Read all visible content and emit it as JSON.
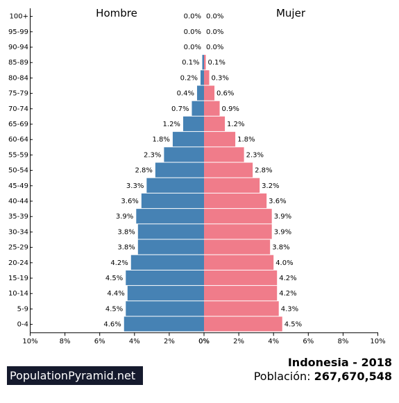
{
  "brand": {
    "logo_text": "PopulationPyramid.net"
  },
  "footer": {
    "country": "Indonesia",
    "separator": " - ",
    "year": "2018",
    "population_label": "Población: ",
    "population_value": "267,670,548"
  },
  "chart_data": {
    "type": "bar",
    "orientation": "horizontal-pyramid",
    "left_title": "Hombre",
    "right_title": "Mujer",
    "x_unit": "%",
    "xlim": [
      -10,
      10
    ],
    "x_ticks": [
      "10%",
      "8%",
      "6%",
      "4%",
      "2%",
      "0%",
      "0%",
      "2%",
      "4%",
      "6%",
      "8%",
      "10%"
    ],
    "colors": {
      "male": "#4682b4",
      "female": "#f07c8a",
      "axis": "#000000"
    },
    "categories": [
      "100+",
      "95-99",
      "90-94",
      "85-89",
      "80-84",
      "75-79",
      "70-74",
      "65-69",
      "60-64",
      "55-59",
      "50-54",
      "45-49",
      "40-44",
      "35-39",
      "30-34",
      "25-29",
      "20-24",
      "15-19",
      "10-14",
      "5-9",
      "0-4"
    ],
    "series": [
      {
        "name": "Hombre",
        "values": [
          0.0,
          0.0,
          0.0,
          0.1,
          0.2,
          0.4,
          0.7,
          1.2,
          1.8,
          2.3,
          2.8,
          3.3,
          3.6,
          3.9,
          3.8,
          3.8,
          4.2,
          4.5,
          4.4,
          4.5,
          4.6
        ],
        "labels": [
          "0.0%",
          "0.0%",
          "0.0%",
          "0.1%",
          "0.2%",
          "0.4%",
          "0.7%",
          "1.2%",
          "1.8%",
          "2.3%",
          "2.8%",
          "3.3%",
          "3.6%",
          "3.9%",
          "3.8%",
          "3.8%",
          "4.2%",
          "4.5%",
          "4.4%",
          "4.5%",
          "4.6%"
        ]
      },
      {
        "name": "Mujer",
        "values": [
          0.0,
          0.0,
          0.0,
          0.1,
          0.3,
          0.6,
          0.9,
          1.2,
          1.8,
          2.3,
          2.8,
          3.2,
          3.6,
          3.9,
          3.9,
          3.8,
          4.0,
          4.2,
          4.2,
          4.3,
          4.5
        ],
        "labels": [
          "0.0%",
          "0.0%",
          "0.0%",
          "0.1%",
          "0.3%",
          "0.6%",
          "0.9%",
          "1.2%",
          "1.8%",
          "2.3%",
          "2.8%",
          "3.2%",
          "3.6%",
          "3.9%",
          "3.9%",
          "3.8%",
          "4.0%",
          "4.2%",
          "4.2%",
          "4.3%",
          "4.5%"
        ]
      }
    ]
  }
}
